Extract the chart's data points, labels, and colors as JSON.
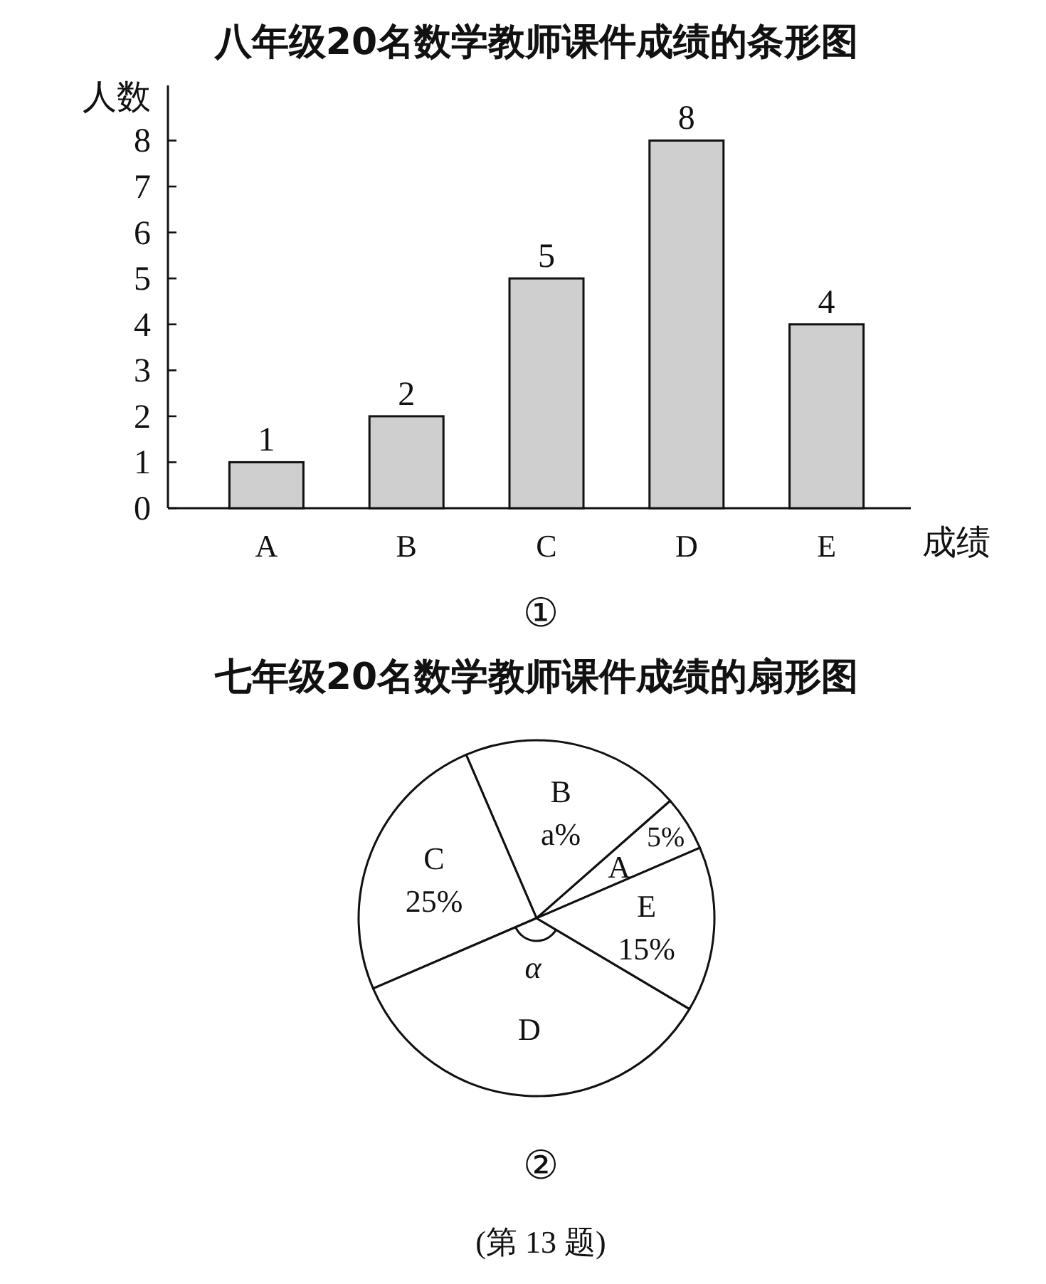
{
  "chart_data": [
    {
      "type": "bar",
      "title": "八年级20名数学教师课件成绩的条形图",
      "ylabel": "人数",
      "xlabel": "成绩",
      "categories": [
        "A",
        "B",
        "C",
        "D",
        "E"
      ],
      "values": [
        1,
        2,
        5,
        8,
        4
      ],
      "color": "#cfcfcf",
      "ylim": [
        0,
        9.2
      ],
      "yticks": [
        0,
        1,
        2,
        3,
        4,
        5,
        6,
        7,
        8
      ],
      "data_labels": true,
      "annotations": [
        "①"
      ]
    },
    {
      "type": "pie",
      "title": "七年级20名数学教师课件成绩的扇形图",
      "categories": [
        "A",
        "B",
        "C",
        "D",
        "E"
      ],
      "values": [
        5,
        20,
        25,
        35,
        15
      ],
      "colors": [
        "#ffffff",
        "#ffffff",
        "#ffffff",
        "#ffffff",
        "#ffffff"
      ],
      "value_labels": [
        "5%",
        "a%",
        "25%",
        null,
        "15%"
      ],
      "annotations": [
        {
          "text": "α",
          "x": "D"
        },
        "②",
        "(第 13 题)"
      ]
    }
  ]
}
